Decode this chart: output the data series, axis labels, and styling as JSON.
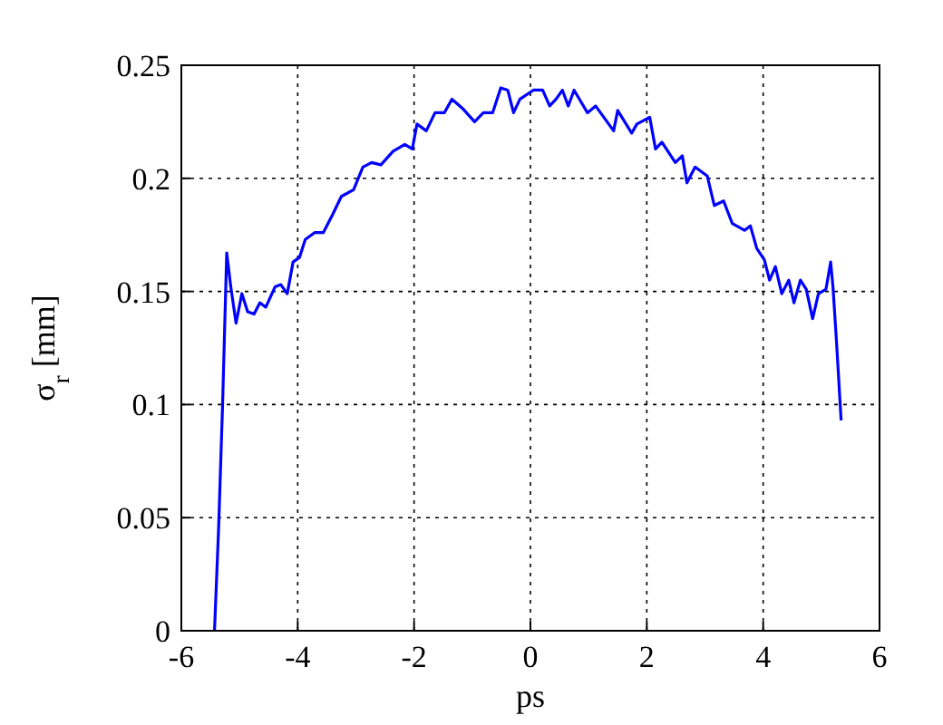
{
  "chart_data": {
    "type": "line",
    "xlabel": "ps",
    "ylabel": "σ$_{r}$ [mm]",
    "xlim": [
      -6,
      6
    ],
    "xticks": [
      -6,
      -4,
      -2,
      0,
      2,
      4,
      6
    ],
    "ylim": [
      0,
      0.25
    ],
    "yticks": [
      0,
      0.05,
      0.1,
      0.15,
      0.2,
      0.25
    ],
    "grid": true,
    "line_style": "solid",
    "marker": "none",
    "series": [
      {
        "color": "#0000ff",
        "x": [
          -5.43,
          -5.36,
          -5.29,
          -5.25,
          -5.22,
          -5.15,
          -5.06,
          -4.96,
          -4.86,
          -4.75,
          -4.65,
          -4.55,
          -4.39,
          -4.29,
          -4.18,
          -4.08,
          -3.97,
          -3.87,
          -3.71,
          -3.56,
          -3.4,
          -3.25,
          -3.04,
          -2.88,
          -2.73,
          -2.57,
          -2.36,
          -2.16,
          -2.03,
          -1.95,
          -1.79,
          -1.64,
          -1.48,
          -1.35,
          -1.17,
          -0.96,
          -0.81,
          -0.65,
          -0.51,
          -0.39,
          -0.29,
          -0.18,
          0.05,
          0.21,
          0.33,
          0.44,
          0.55,
          0.65,
          0.75,
          0.98,
          1.12,
          1.43,
          1.5,
          1.74,
          1.83,
          2.05,
          2.15,
          2.26,
          2.49,
          2.61,
          2.69,
          2.83,
          3.04,
          3.16,
          3.32,
          3.47,
          3.68,
          3.78,
          3.89,
          4.02,
          4.11,
          4.21,
          4.32,
          4.44,
          4.53,
          4.64,
          4.74,
          4.85,
          4.95,
          5.08,
          5.16,
          5.2,
          5.26,
          5.34
        ],
        "values": [
          0,
          0.045,
          0.101,
          0.139,
          0.167,
          0.152,
          0.136,
          0.149,
          0.141,
          0.14,
          0.145,
          0.143,
          0.152,
          0.153,
          0.149,
          0.163,
          0.165,
          0.173,
          0.176,
          0.176,
          0.184,
          0.192,
          0.195,
          0.205,
          0.207,
          0.206,
          0.212,
          0.215,
          0.213,
          0.224,
          0.221,
          0.229,
          0.229,
          0.235,
          0.231,
          0.225,
          0.229,
          0.229,
          0.24,
          0.239,
          0.229,
          0.235,
          0.239,
          0.239,
          0.232,
          0.235,
          0.239,
          0.232,
          0.239,
          0.229,
          0.232,
          0.221,
          0.23,
          0.22,
          0.224,
          0.227,
          0.213,
          0.216,
          0.207,
          0.21,
          0.198,
          0.205,
          0.201,
          0.188,
          0.19,
          0.18,
          0.177,
          0.179,
          0.169,
          0.164,
          0.155,
          0.161,
          0.149,
          0.155,
          0.145,
          0.155,
          0.151,
          0.138,
          0.149,
          0.151,
          0.163,
          0.152,
          0.128,
          0.093
        ]
      }
    ]
  }
}
